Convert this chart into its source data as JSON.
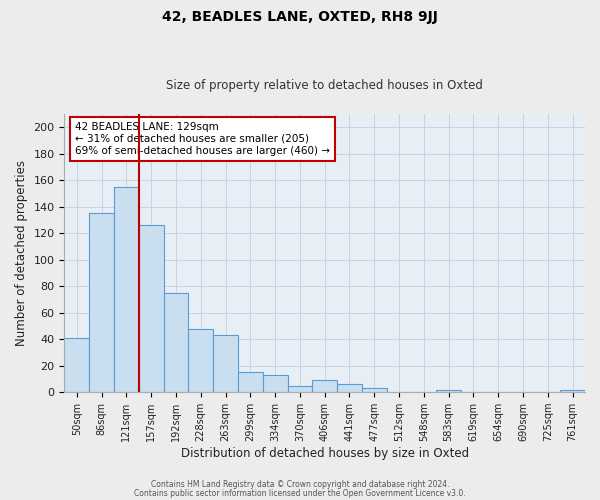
{
  "title": "42, BEADLES LANE, OXTED, RH8 9JJ",
  "subtitle": "Size of property relative to detached houses in Oxted",
  "xlabel": "Distribution of detached houses by size in Oxted",
  "ylabel": "Number of detached properties",
  "bar_labels": [
    "50sqm",
    "86sqm",
    "121sqm",
    "157sqm",
    "192sqm",
    "228sqm",
    "263sqm",
    "299sqm",
    "334sqm",
    "370sqm",
    "406sqm",
    "441sqm",
    "477sqm",
    "512sqm",
    "548sqm",
    "583sqm",
    "619sqm",
    "654sqm",
    "690sqm",
    "725sqm",
    "761sqm"
  ],
  "bar_values": [
    41,
    135,
    155,
    126,
    75,
    48,
    43,
    15,
    13,
    5,
    9,
    6,
    3,
    0,
    0,
    2,
    0,
    0,
    0,
    0,
    2
  ],
  "bar_color": "#c9dff0",
  "bar_edgecolor": "#5b9bd5",
  "vline_x": 2.5,
  "vline_color": "#c00000",
  "annotation_title": "42 BEADLES LANE: 129sqm",
  "annotation_line1": "← 31% of detached houses are smaller (205)",
  "annotation_line2": "69% of semi-detached houses are larger (460) →",
  "ylim": [
    0,
    210
  ],
  "yticks": [
    0,
    20,
    40,
    60,
    80,
    100,
    120,
    140,
    160,
    180,
    200
  ],
  "footer1": "Contains HM Land Registry data © Crown copyright and database right 2024.",
  "footer2": "Contains public sector information licensed under the Open Government Licence v3.0.",
  "bg_color": "#ececec",
  "plot_bg_color": "#e8eef5",
  "grid_color": "#c8d4e0"
}
